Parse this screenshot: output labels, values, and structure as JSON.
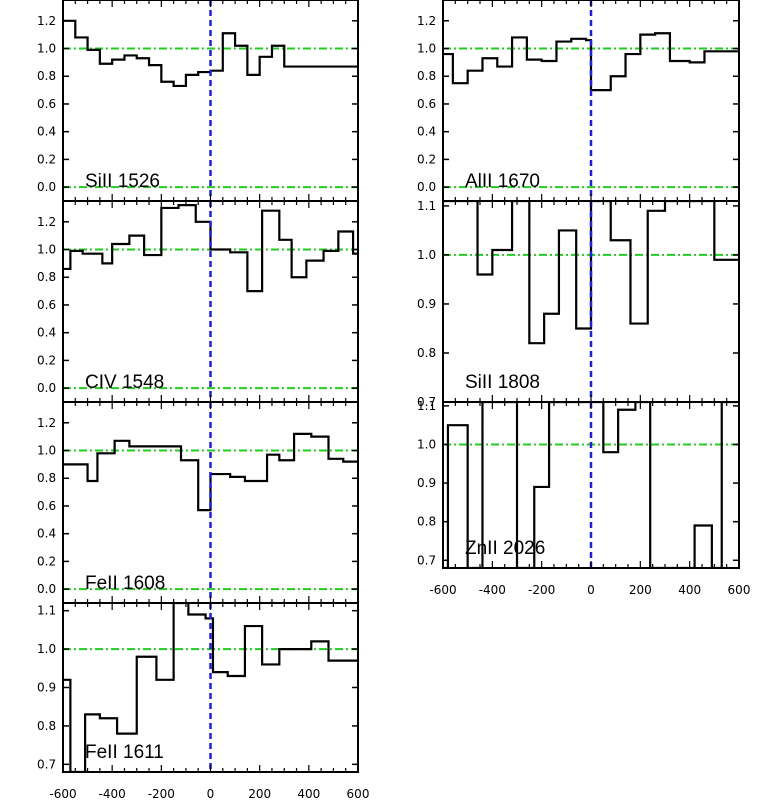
{
  "chart_data": [
    {
      "type": "line",
      "step": true,
      "label": "SiII 1526",
      "xlim": [
        -600,
        600
      ],
      "ylim": [
        -0.1,
        1.35
      ],
      "yticks": [
        "0.0",
        "0.2",
        "0.4",
        "0.6",
        "0.8",
        "1.0",
        "1.2"
      ],
      "xticks": [],
      "x": [
        -600,
        -550,
        -500,
        -450,
        -400,
        -350,
        -300,
        -250,
        -200,
        -150,
        -100,
        -50,
        0,
        50,
        100,
        150,
        200,
        250,
        300,
        350,
        400,
        450,
        500,
        550,
        600
      ],
      "y": [
        1.2,
        1.08,
        0.99,
        0.89,
        0.92,
        0.95,
        0.93,
        0.88,
        0.76,
        0.73,
        0.81,
        0.83,
        0.84,
        1.11,
        1.02,
        0.81,
        0.94,
        1.02,
        0.87,
        0.87,
        0.87,
        0.87,
        0.87,
        0.87,
        0.87
      ],
      "continuum": 1.0,
      "zero_level": 0.0,
      "vline": 0
    },
    {
      "type": "line",
      "step": true,
      "label": "AlII 1670",
      "xlim": [
        -600,
        600
      ],
      "ylim": [
        -0.1,
        1.35
      ],
      "yticks": [
        "0.0",
        "0.2",
        "0.4",
        "0.6",
        "0.8",
        "1.0",
        "1.2"
      ],
      "xticks": [],
      "x": [
        -600,
        -560,
        -500,
        -440,
        -380,
        -320,
        -260,
        -200,
        -140,
        -80,
        -20,
        0,
        80,
        140,
        200,
        260,
        320,
        400,
        460,
        540,
        600
      ],
      "y": [
        0.96,
        0.75,
        0.84,
        0.93,
        0.87,
        1.08,
        0.92,
        0.91,
        1.05,
        1.07,
        1.06,
        0.7,
        0.8,
        0.96,
        1.1,
        1.11,
        0.91,
        0.9,
        0.98,
        0.98,
        0.98
      ],
      "continuum": 1.0,
      "zero_level": 0.0,
      "vline": 0
    },
    {
      "type": "line",
      "step": true,
      "label": "CIV 1548",
      "xlim": [
        -600,
        600
      ],
      "ylim": [
        -0.1,
        1.35
      ],
      "yticks": [
        "0.0",
        "0.2",
        "0.4",
        "0.6",
        "0.8",
        "1.0",
        "1.2"
      ],
      "xticks": [],
      "x": [
        -600,
        -570,
        -520,
        -440,
        -400,
        -330,
        -270,
        -200,
        -130,
        -60,
        0,
        80,
        150,
        210,
        280,
        330,
        390,
        460,
        520,
        580,
        600
      ],
      "y": [
        0.86,
        0.99,
        0.97,
        0.9,
        1.04,
        1.1,
        0.96,
        1.3,
        1.32,
        1.2,
        1.0,
        0.98,
        0.7,
        1.28,
        1.07,
        0.8,
        0.92,
        0.99,
        1.13,
        0.97,
        0.97
      ],
      "continuum": 1.0,
      "zero_level": 0.0,
      "vline": 0
    },
    {
      "type": "line",
      "step": true,
      "label": "SiII 1808",
      "xlim": [
        -600,
        600
      ],
      "ylim": [
        0.7,
        1.11
      ],
      "yticks": [
        "0.7",
        "0.8",
        "0.9",
        "1.0",
        "1.1"
      ],
      "xticks": [],
      "x": [
        -600,
        -460,
        -400,
        -320,
        -250,
        -190,
        -130,
        -60,
        0,
        20,
        80,
        160,
        230,
        300,
        500,
        600
      ],
      "y": [
        1.12,
        0.96,
        1.01,
        1.12,
        0.82,
        0.88,
        1.05,
        0.85,
        1.12,
        1.12,
        1.03,
        0.86,
        1.09,
        1.12,
        0.99,
        0.99
      ],
      "continuum": 1.0,
      "vline": 0
    },
    {
      "type": "line",
      "step": true,
      "label": "FeII 1608",
      "xlim": [
        -600,
        600
      ],
      "ylim": [
        -0.1,
        1.35
      ],
      "yticks": [
        "0.0",
        "0.2",
        "0.4",
        "0.6",
        "0.8",
        "1.0",
        "1.2"
      ],
      "xticks": [],
      "x": [
        -600,
        -500,
        -460,
        -390,
        -330,
        -260,
        -120,
        -50,
        0,
        80,
        140,
        230,
        280,
        340,
        410,
        480,
        540,
        600
      ],
      "y": [
        0.9,
        0.78,
        0.98,
        1.07,
        1.03,
        1.03,
        0.93,
        0.57,
        0.83,
        0.81,
        0.78,
        0.97,
        0.93,
        1.12,
        1.1,
        0.94,
        0.92,
        0.92
      ],
      "continuum": 1.0,
      "zero_level": 0.0,
      "vline": 0
    },
    {
      "type": "line",
      "step": true,
      "label": "ZnII 2026",
      "xlim": [
        -600,
        600
      ],
      "ylim": [
        0.68,
        1.11
      ],
      "yticks": [
        "0.7",
        "0.8",
        "0.9",
        "1.0",
        "1.1"
      ],
      "xticks": [
        "-600",
        "-400",
        "-200",
        "0",
        "200",
        "400",
        "600"
      ],
      "x": [
        -600,
        -580,
        -500,
        -440,
        -300,
        -230,
        -170,
        -160,
        50,
        110,
        180,
        240,
        420,
        490,
        530,
        600
      ],
      "y": [
        0.68,
        1.05,
        0.68,
        1.12,
        0.68,
        0.89,
        1.12,
        1.12,
        0.98,
        1.09,
        1.12,
        0.68,
        0.79,
        0.68,
        1.12,
        1.12
      ],
      "continuum": 1.0,
      "vline": 0
    },
    {
      "type": "line",
      "step": true,
      "label": "FeII 1611",
      "xlim": [
        -600,
        600
      ],
      "ylim": [
        0.68,
        1.12
      ],
      "yticks": [
        "0.7",
        "0.8",
        "0.9",
        "1.0",
        "1.1"
      ],
      "xticks": [
        "-600",
        "-400",
        "-200",
        "0",
        "200",
        "400",
        "600"
      ],
      "x": [
        -600,
        -570,
        -510,
        -450,
        -380,
        -300,
        -220,
        -150,
        -90,
        -20,
        10,
        70,
        140,
        210,
        280,
        340,
        410,
        480,
        580,
        600
      ],
      "y": [
        0.92,
        0.6,
        0.83,
        0.82,
        0.78,
        0.98,
        0.92,
        1.12,
        1.09,
        1.08,
        0.94,
        0.93,
        1.06,
        0.96,
        1.0,
        1.0,
        1.02,
        0.97,
        0.97,
        0.97
      ],
      "continuum": 1.0,
      "vline": 0
    }
  ],
  "colors": {
    "data": "#000000",
    "continuum": "#22cc22",
    "vline": "#1f1fd6",
    "axis": "#000000"
  }
}
